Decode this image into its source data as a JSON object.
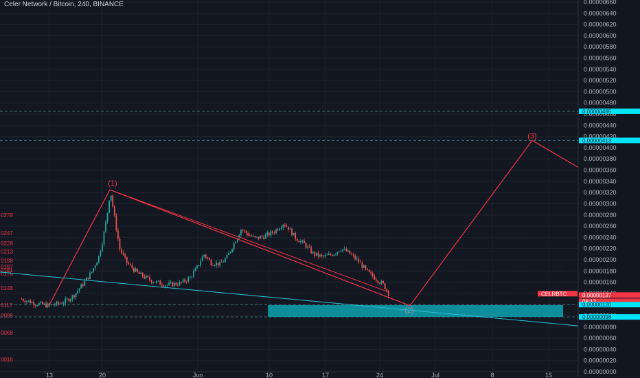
{
  "header": {
    "title": "Celer Network / Bitcoin, 240, BINANCE"
  },
  "colors": {
    "background": "#131722",
    "grid": "#1e222d",
    "up": "#26a69a",
    "down": "#ef5350",
    "wave": "#f23645",
    "trend": "#26c6da",
    "zone": "#0e9aa7",
    "tag_blue": "#00e5ff",
    "tag_red": "#f23645",
    "axis_text": "#b2b5be"
  },
  "chart_data": {
    "type": "candlestick",
    "symbol": "CELR/BTC",
    "timeframe": "240",
    "exchange": "BINANCE",
    "ylim": [
      1.2e-07,
      6.6e-06
    ],
    "y_ticks": [
      "0.00000640",
      "0.00000620",
      "0.00000600",
      "0.00000580",
      "0.00000560",
      "0.00000540",
      "0.00000520",
      "0.00000500",
      "0.00000480",
      "0.00000460",
      "0.00000440",
      "0.00000420",
      "0.00000400",
      "0.00000380",
      "0.00000360",
      "0.00000340",
      "0.00000320",
      "0.00000300",
      "0.00000280",
      "0.00000260",
      "0.00000240",
      "0.00000220",
      "0.00000200",
      "0.00000180",
      "0.00000160",
      "0.00000140",
      "0.00000120",
      "0.00000100",
      "0.00000080",
      "0.00000060",
      "0.00000040",
      "0.00000020",
      "0.00000000"
    ],
    "y_ticks_top": "0.00000660",
    "x_ticks": [
      "13",
      "20",
      "Jun",
      "10",
      "17",
      "24",
      "Jul",
      "8",
      "15"
    ],
    "price_tags": [
      {
        "label": "0.00000465",
        "value": 4.65e-06,
        "color": "blue"
      },
      {
        "label": "0.00000413",
        "value": 4.13e-06,
        "color": "blue"
      },
      {
        "label": "CELRBTC",
        "value": 1.37e-06,
        "color": "red"
      },
      {
        "label": "0.00000137",
        "value": 1.37e-06,
        "color": "red"
      },
      {
        "label": "06:12",
        "value": 1.32e-06,
        "color": "red"
      },
      {
        "label": "0.00000120",
        "value": 1.2e-06,
        "color": "blue"
      },
      {
        "label": "0.00000098",
        "value": 9.8e-07,
        "color": "blue"
      }
    ],
    "left_labels": [
      "0278",
      "0247",
      "0228",
      "0213",
      "0198",
      "0187",
      "0181",
      "0176",
      "0148",
      "0117",
      "0098",
      "0068",
      "0018"
    ],
    "wave_labels": [
      "(1)",
      "(2)",
      "(3)"
    ],
    "waves": [
      {
        "label": "(1)",
        "value": 3.25e-06
      },
      {
        "label": "(2)",
        "value": 1.18e-06
      },
      {
        "label": "(3)",
        "value": 4.13e-06
      }
    ],
    "price_path": [
      [
        0,
        1.3
      ],
      [
        6,
        1.22
      ],
      [
        12,
        1.18
      ],
      [
        18,
        1.24
      ],
      [
        22,
        1.35
      ],
      [
        26,
        1.55
      ],
      [
        30,
        1.78
      ],
      [
        33,
        2.05
      ],
      [
        35,
        2.4
      ],
      [
        37,
        2.9
      ],
      [
        38,
        3.25
      ],
      [
        40,
        2.7
      ],
      [
        42,
        2.2
      ],
      [
        45,
        1.95
      ],
      [
        50,
        1.75
      ],
      [
        56,
        1.62
      ],
      [
        62,
        1.55
      ],
      [
        68,
        1.58
      ],
      [
        72,
        1.68
      ],
      [
        75,
        1.85
      ],
      [
        78,
        2.1
      ],
      [
        81,
        1.95
      ],
      [
        85,
        1.92
      ],
      [
        88,
        2.05
      ],
      [
        91,
        2.3
      ],
      [
        94,
        2.55
      ],
      [
        97,
        2.45
      ],
      [
        100,
        2.38
      ],
      [
        104,
        2.42
      ],
      [
        108,
        2.5
      ],
      [
        112,
        2.65
      ],
      [
        114,
        2.58
      ],
      [
        117,
        2.4
      ],
      [
        121,
        2.28
      ],
      [
        125,
        2.1
      ],
      [
        129,
        2.05
      ],
      [
        133,
        2.1
      ],
      [
        137,
        2.2
      ],
      [
        140,
        2.12
      ],
      [
        144,
        1.98
      ],
      [
        148,
        1.78
      ],
      [
        152,
        1.65
      ],
      [
        155,
        1.55
      ],
      [
        157,
        1.4
      ]
    ],
    "trend_line": {
      "from_value": 1.78e-06,
      "to_value": 8.7e-07
    },
    "zone": {
      "top_value": 1.19e-06,
      "bottom_value": 9.8e-07
    }
  }
}
